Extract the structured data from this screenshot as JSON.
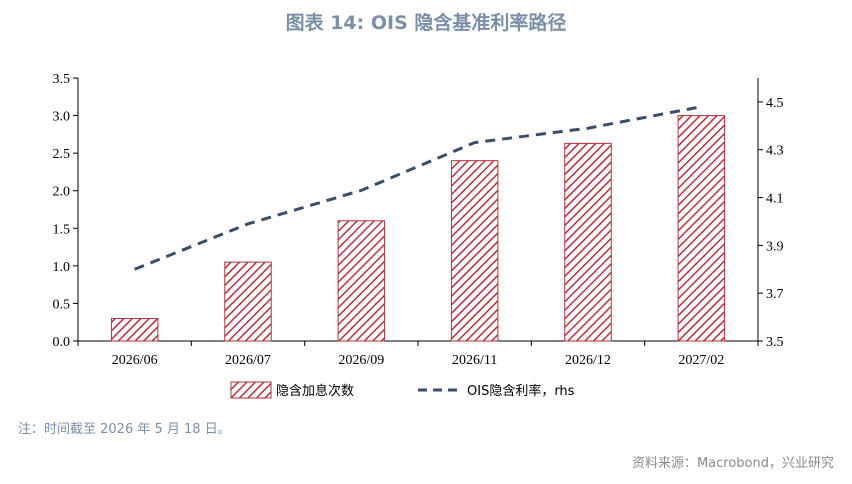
{
  "title": "图表  14:  OIS 隐含基准利率路径",
  "note": "注：时间截至 2026 年 5 月 18 日。",
  "source": "资料来源：Macrobond，兴业研究",
  "colors": {
    "bar": "#b5313c",
    "line": "#3b4d6b",
    "title": "#7b8fa8"
  },
  "chart_data": {
    "type": "bar",
    "categories": [
      "2026/06",
      "2026/07",
      "2026/09",
      "2026/11",
      "2026/12",
      "2027/02"
    ],
    "series": [
      {
        "name": "隐含加息次数",
        "type": "bar",
        "axis": "left",
        "values": [
          0.3,
          1.05,
          1.6,
          2.4,
          2.63,
          3.0
        ]
      },
      {
        "name": "OIS隐含利率，rhs",
        "type": "line",
        "axis": "right",
        "style": "dashed",
        "values": [
          3.8,
          3.99,
          4.13,
          4.33,
          4.39,
          4.48
        ]
      }
    ],
    "ylim": [
      0,
      3.5
    ],
    "yticks": [
      "0.0",
      "0.5",
      "1.0",
      "1.5",
      "2.0",
      "2.5",
      "3.0",
      "3.5"
    ],
    "y2lim": [
      3.5,
      4.6
    ],
    "y2ticks": [
      "3.5",
      "3.7",
      "3.9",
      "4.1",
      "4.3",
      "4.5"
    ],
    "legend": "bottom"
  }
}
